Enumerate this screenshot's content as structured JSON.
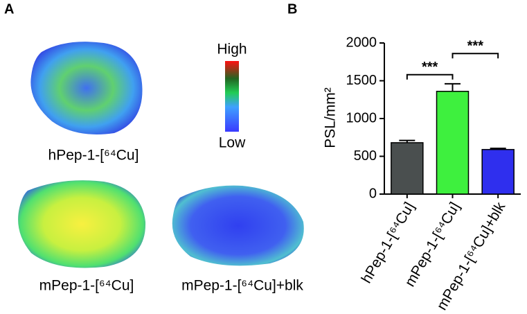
{
  "panel_a": {
    "label": "A",
    "colorbar": {
      "high": "High",
      "low": "Low"
    },
    "captions": [
      "hPep-1-[⁶⁴Cu]",
      "mPep-1-[⁶⁴Cu]",
      "mPep-1-[⁶⁴Cu]+blk"
    ]
  },
  "chart_data": {
    "type": "bar",
    "panel_label": "B",
    "y_label": "PSL/mm²",
    "categories": [
      "hPep-1-[⁶⁴Cu]",
      "mPep-1-[⁶⁴Cu]",
      "mPep-1-[⁶⁴Cu]+blk"
    ],
    "values": [
      680,
      1360,
      590
    ],
    "errors": [
      30,
      100,
      15
    ],
    "colors": [
      "#4a4f4f",
      "#3ef03e",
      "#2f2fee"
    ],
    "ylim": [
      0,
      2000
    ],
    "yticks": [
      0,
      500,
      1000,
      1500,
      2000
    ],
    "annotations": [
      {
        "text": "***",
        "from": 0,
        "to": 1,
        "y": 1580
      },
      {
        "text": "***",
        "from": 1,
        "to": 2,
        "y": 1860
      }
    ]
  }
}
